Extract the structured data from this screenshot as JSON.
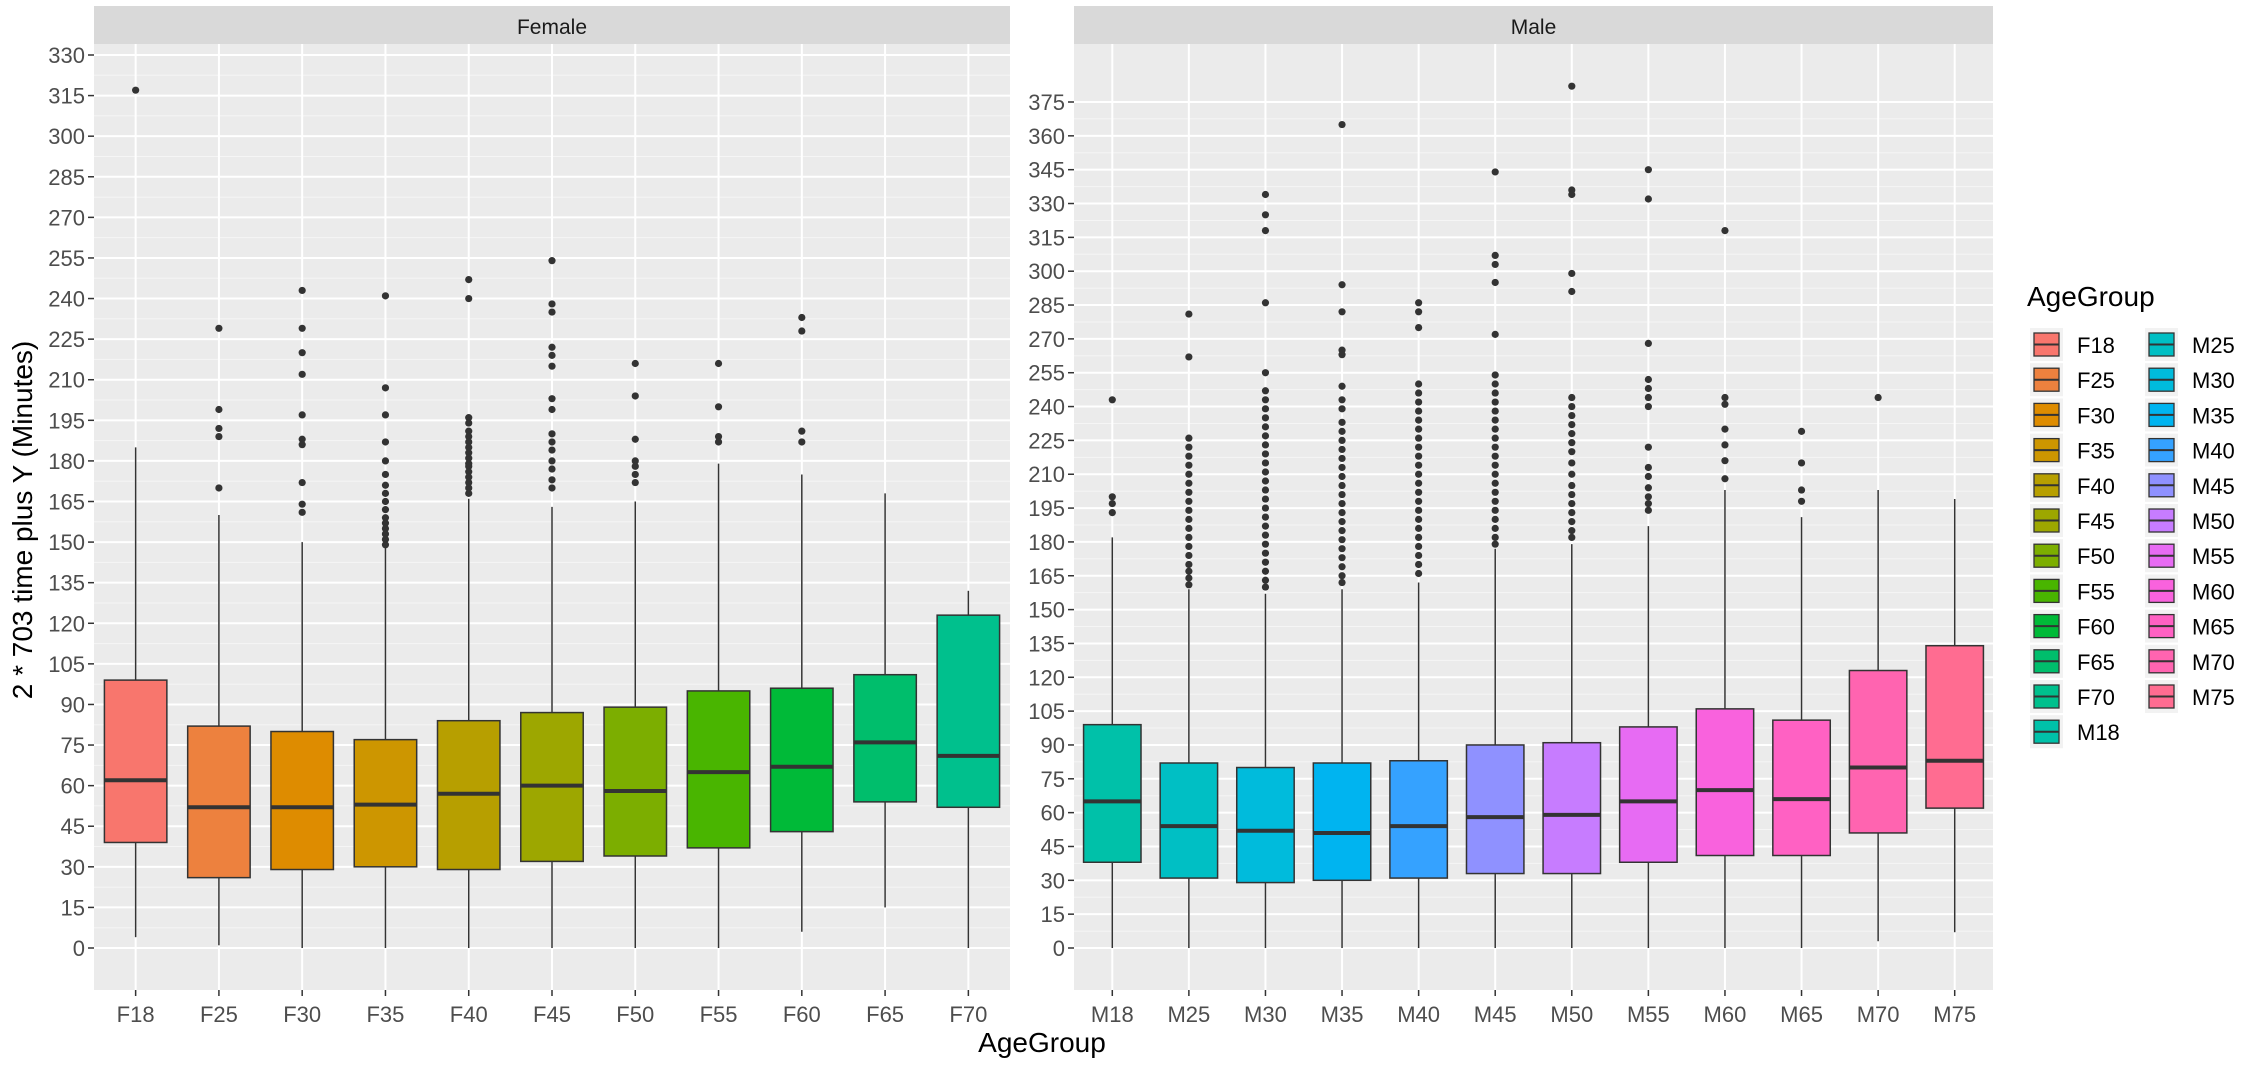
{
  "chart_data": {
    "type": "boxplot",
    "xlabel": "AgeGroup",
    "ylabel": "2 * 703 time plus Y (Minutes)",
    "legend": {
      "title": "AgeGroup",
      "placement": "right",
      "columns": 2
    },
    "grid": true,
    "panels": [
      {
        "name": "Female",
        "ylim": [
          -20,
          342
        ],
        "yticks": [
          0,
          15,
          30,
          45,
          60,
          75,
          90,
          105,
          120,
          135,
          150,
          165,
          180,
          195,
          210,
          225,
          240,
          255,
          270,
          285,
          300,
          315,
          330
        ],
        "categories": [
          "F18",
          "F25",
          "F30",
          "F35",
          "F40",
          "F45",
          "F50",
          "F55",
          "F60",
          "F65",
          "F70"
        ],
        "boxes": [
          {
            "group": "F18",
            "lower_whisker": 4,
            "q1": 39,
            "median": 62,
            "q3": 99,
            "upper_whisker": 185,
            "outliers": [
              317
            ]
          },
          {
            "group": "F25",
            "lower_whisker": 1,
            "q1": 26,
            "median": 52,
            "q3": 82,
            "upper_whisker": 160,
            "outliers": [
              229,
              199,
              192,
              189,
              170
            ]
          },
          {
            "group": "F30",
            "lower_whisker": 0,
            "q1": 29,
            "median": 52,
            "q3": 80,
            "upper_whisker": 150,
            "outliers": [
              243,
              229,
              220,
              212,
              197,
              188,
              186,
              172,
              164,
              161
            ]
          },
          {
            "group": "F35",
            "lower_whisker": 0,
            "q1": 30,
            "median": 53,
            "q3": 77,
            "upper_whisker": 148,
            "outliers": [
              241,
              207,
              197,
              187,
              180,
              175,
              171,
              168,
              165,
              162,
              159,
              157,
              155,
              153,
              151,
              149
            ]
          },
          {
            "group": "F40",
            "lower_whisker": 0,
            "q1": 29,
            "median": 57,
            "q3": 84,
            "upper_whisker": 166,
            "outliers": [
              247,
              240,
              196,
              194,
              191,
              189,
              187,
              185,
              183,
              181,
              179,
              178,
              176,
              174,
              172,
              170,
              168
            ]
          },
          {
            "group": "F45",
            "lower_whisker": 0,
            "q1": 32,
            "median": 60,
            "q3": 87,
            "upper_whisker": 163,
            "outliers": [
              254,
              238,
              235,
              222,
              219,
              215,
              203,
              199,
              190,
              187,
              184,
              180,
              177,
              173,
              170
            ]
          },
          {
            "group": "F50",
            "lower_whisker": 0,
            "q1": 34,
            "median": 58,
            "q3": 89,
            "upper_whisker": 165,
            "outliers": [
              216,
              204,
              188,
              180,
              178,
              175,
              172
            ]
          },
          {
            "group": "F55",
            "lower_whisker": 0,
            "q1": 37,
            "median": 65,
            "q3": 95,
            "upper_whisker": 179,
            "outliers": [
              216,
              200,
              189,
              187
            ]
          },
          {
            "group": "F60",
            "lower_whisker": 6,
            "q1": 43,
            "median": 67,
            "q3": 96,
            "upper_whisker": 175,
            "outliers": [
              233,
              228,
              191,
              187
            ]
          },
          {
            "group": "F65",
            "lower_whisker": 15,
            "q1": 54,
            "median": 76,
            "q3": 101,
            "upper_whisker": 168,
            "outliers": []
          },
          {
            "group": "F70",
            "lower_whisker": 0,
            "q1": 52,
            "median": 71,
            "q3": 123,
            "upper_whisker": 132,
            "outliers": []
          }
        ]
      },
      {
        "name": "Male",
        "ylim": [
          -20,
          392
        ],
        "yticks": [
          0,
          15,
          30,
          45,
          60,
          75,
          90,
          105,
          120,
          135,
          150,
          165,
          180,
          195,
          210,
          225,
          240,
          255,
          270,
          285,
          300,
          315,
          330,
          345,
          360,
          375
        ],
        "categories": [
          "M18",
          "M25",
          "M30",
          "M35",
          "M40",
          "M45",
          "M50",
          "M55",
          "M60",
          "M65",
          "M70",
          "M75"
        ],
        "boxes": [
          {
            "group": "M18",
            "lower_whisker": 0,
            "q1": 38,
            "median": 65,
            "q3": 99,
            "upper_whisker": 182,
            "outliers": [
              243,
              200,
              197,
              193
            ]
          },
          {
            "group": "M25",
            "lower_whisker": 0,
            "q1": 31,
            "median": 54,
            "q3": 82,
            "upper_whisker": 159,
            "outliers": [
              281,
              262,
              226,
              222,
              218,
              214,
              210,
              206,
              202,
              198,
              194,
              190,
              186,
              182,
              178,
              174,
              170,
              167,
              164,
              161
            ]
          },
          {
            "group": "M30",
            "lower_whisker": 0,
            "q1": 29,
            "median": 52,
            "q3": 80,
            "upper_whisker": 157,
            "outliers": [
              334,
              325,
              318,
              286,
              255,
              247,
              243,
              239,
              235,
              231,
              227,
              223,
              219,
              215,
              211,
              207,
              203,
              199,
              195,
              191,
              187,
              183,
              179,
              175,
              171,
              167,
              163,
              160
            ]
          },
          {
            "group": "M35",
            "lower_whisker": 0,
            "q1": 30,
            "median": 51,
            "q3": 82,
            "upper_whisker": 159,
            "outliers": [
              365,
              294,
              282,
              265,
              263,
              249,
              243,
              239,
              233,
              229,
              225,
              221,
              217,
              213,
              209,
              205,
              201,
              197,
              193,
              189,
              185,
              181,
              177,
              173,
              169,
              165,
              162
            ]
          },
          {
            "group": "M40",
            "lower_whisker": 0,
            "q1": 31,
            "median": 54,
            "q3": 83,
            "upper_whisker": 162,
            "outliers": [
              286,
              282,
              275,
              250,
              246,
              242,
              238,
              234,
              230,
              226,
              222,
              218,
              214,
              210,
              206,
              202,
              198,
              194,
              190,
              186,
              182,
              178,
              174,
              170,
              166
            ]
          },
          {
            "group": "M45",
            "lower_whisker": 0,
            "q1": 33,
            "median": 58,
            "q3": 90,
            "upper_whisker": 177,
            "outliers": [
              344,
              307,
              303,
              295,
              272,
              254,
              250,
              246,
              242,
              238,
              234,
              230,
              226,
              222,
              218,
              214,
              210,
              206,
              202,
              198,
              194,
              190,
              186,
              182,
              179
            ]
          },
          {
            "group": "M50",
            "lower_whisker": 0,
            "q1": 33,
            "median": 59,
            "q3": 91,
            "upper_whisker": 179,
            "outliers": [
              382,
              336,
              334,
              299,
              291,
              244,
              240,
              236,
              232,
              228,
              224,
              220,
              215,
              210,
              205,
              201,
              197,
              193,
              189,
              185,
              182
            ]
          },
          {
            "group": "M55",
            "lower_whisker": 0,
            "q1": 38,
            "median": 65,
            "q3": 98,
            "upper_whisker": 187,
            "outliers": [
              345,
              332,
              268,
              252,
              248,
              244,
              240,
              222,
              213,
              209,
              204,
              200,
              197,
              194
            ]
          },
          {
            "group": "M60",
            "lower_whisker": 0,
            "q1": 41,
            "median": 70,
            "q3": 106,
            "upper_whisker": 203,
            "outliers": [
              318,
              244,
              241,
              230,
              223,
              216,
              208
            ]
          },
          {
            "group": "M65",
            "lower_whisker": 0,
            "q1": 41,
            "median": 66,
            "q3": 101,
            "upper_whisker": 191,
            "outliers": [
              229,
              215,
              203,
              198
            ]
          },
          {
            "group": "M70",
            "lower_whisker": 3,
            "q1": 51,
            "median": 80,
            "q3": 123,
            "upper_whisker": 203,
            "outliers": [
              244
            ]
          },
          {
            "group": "M75",
            "lower_whisker": 7,
            "q1": 62,
            "median": 83,
            "q3": 134,
            "upper_whisker": 199,
            "outliers": []
          }
        ]
      }
    ],
    "colors": {
      "F18": "#F8766D",
      "F25": "#ED813E",
      "F30": "#DE8C00",
      "F35": "#CD9600",
      "F40": "#B79F00",
      "F45": "#9DA700",
      "F50": "#7CAE00",
      "F55": "#49B500",
      "F60": "#00BA38",
      "F65": "#00BE6C",
      "F70": "#00C08D",
      "M18": "#00C1A9",
      "M25": "#00BFC4",
      "M30": "#00BBDC",
      "M35": "#00B4F0",
      "M40": "#35A2FF",
      "M45": "#8F91FF",
      "M50": "#C77CFF",
      "M55": "#E76BF3",
      "M60": "#F962DD",
      "M65": "#FF61C3",
      "M70": "#FF64B0",
      "M75": "#FF6C91"
    },
    "legend_order": [
      "F18",
      "F25",
      "F30",
      "F35",
      "F40",
      "F45",
      "F50",
      "F55",
      "F60",
      "F65",
      "F70",
      "M18",
      "M25",
      "M30",
      "M35",
      "M40",
      "M45",
      "M50",
      "M55",
      "M60",
      "M65",
      "M70",
      "M75"
    ]
  }
}
